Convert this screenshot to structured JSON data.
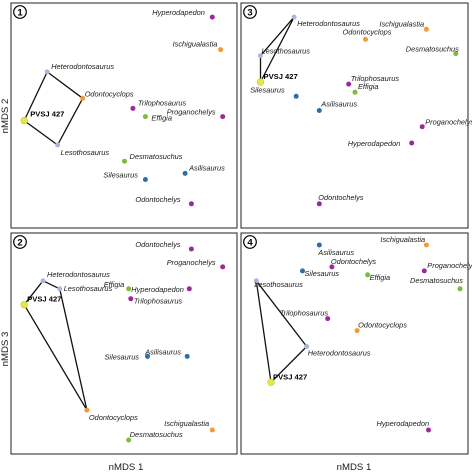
{
  "colors": {
    "Heterodontosaurus": "#a9b8d8",
    "Lesothosaurus": "#a9b8d8",
    "PVSJ 427": "#e3e84a",
    "Odontocyclops": "#f39a32",
    "Ischigualastia": "#f39a32",
    "Silesaurus": "#2e6ea8",
    "Asilisaurus": "#2e6ea8",
    "Trilophosaurus": "#9a2a9a",
    "Proganochelys": "#9a2a9a",
    "Hyperodapedon": "#9a2a9a",
    "Odontochelys": "#9a2a9a",
    "Effigia": "#7dba3e",
    "Desmatosuchus": "#7dba3e",
    "hull": "#111111",
    "frame": "#222222"
  },
  "chart_data": [
    {
      "type": "scatter",
      "panel": "1",
      "hull": [
        "Heterodontosaurus",
        "Odontocyclops",
        "Lesothosaurus",
        "PVSJ 427"
      ],
      "points": [
        {
          "name": "Hyperodapedon",
          "x": 0.92,
          "y": 0.97
        },
        {
          "name": "Ischigualastia",
          "x": 0.96,
          "y": 0.81
        },
        {
          "name": "Heterodontosaurus",
          "x": 0.13,
          "y": 0.7
        },
        {
          "name": "Odontocyclops",
          "x": 0.3,
          "y": 0.57
        },
        {
          "name": "Trilophosaurus",
          "x": 0.54,
          "y": 0.52
        },
        {
          "name": "Effigia",
          "x": 0.6,
          "y": 0.48
        },
        {
          "name": "Proganochelys",
          "x": 0.97,
          "y": 0.48
        },
        {
          "name": "PVSJ 427",
          "x": 0.02,
          "y": 0.46
        },
        {
          "name": "Lesothosaurus",
          "x": 0.18,
          "y": 0.34
        },
        {
          "name": "Desmatosuchus",
          "x": 0.5,
          "y": 0.26
        },
        {
          "name": "Silesaurus",
          "x": 0.6,
          "y": 0.17
        },
        {
          "name": "Asilisaurus",
          "x": 0.79,
          "y": 0.2
        },
        {
          "name": "Odontochelys",
          "x": 0.82,
          "y": 0.05
        }
      ]
    },
    {
      "type": "scatter",
      "panel": "2",
      "hull": [
        "Heterodontosaurus",
        "Lesothosaurus",
        "Odontocyclops",
        "PVSJ 427"
      ],
      "points": [
        {
          "name": "Odontochelys",
          "x": 0.82,
          "y": 0.96
        },
        {
          "name": "Proganochelys",
          "x": 0.97,
          "y": 0.87
        },
        {
          "name": "Heterodontosaurus",
          "x": 0.11,
          "y": 0.8
        },
        {
          "name": "Lesothosaurus",
          "x": 0.19,
          "y": 0.76
        },
        {
          "name": "Effigia",
          "x": 0.52,
          "y": 0.76
        },
        {
          "name": "Hyperodapedon",
          "x": 0.81,
          "y": 0.76
        },
        {
          "name": "Trilophosaurus",
          "x": 0.53,
          "y": 0.71
        },
        {
          "name": "PVSJ 427",
          "x": 0.02,
          "y": 0.68
        },
        {
          "name": "Silesaurus",
          "x": 0.61,
          "y": 0.42
        },
        {
          "name": "Asilisaurus",
          "x": 0.8,
          "y": 0.42
        },
        {
          "name": "Odontocyclops",
          "x": 0.32,
          "y": 0.15
        },
        {
          "name": "Ischigualastia",
          "x": 0.92,
          "y": 0.05
        },
        {
          "name": "Desmatosuchus",
          "x": 0.52,
          "y": 0.0
        }
      ]
    },
    {
      "type": "scatter",
      "panel": "3",
      "hull": [
        "Heterodontosaurus",
        "PVSJ 427",
        "Lesothosaurus"
      ],
      "points": [
        {
          "name": "Heterodontosaurus",
          "x": 0.21,
          "y": 0.97
        },
        {
          "name": "Ischigualastia",
          "x": 0.84,
          "y": 0.91
        },
        {
          "name": "Odontocyclops",
          "x": 0.55,
          "y": 0.86
        },
        {
          "name": "Desmatosuchus",
          "x": 0.98,
          "y": 0.79
        },
        {
          "name": "Lesothosaurus",
          "x": 0.05,
          "y": 0.78
        },
        {
          "name": "PVSJ 427",
          "x": 0.05,
          "y": 0.65
        },
        {
          "name": "Trilophosaurus",
          "x": 0.47,
          "y": 0.64
        },
        {
          "name": "Effigia",
          "x": 0.5,
          "y": 0.6
        },
        {
          "name": "Silesaurus",
          "x": 0.22,
          "y": 0.58
        },
        {
          "name": "Asilisaurus",
          "x": 0.33,
          "y": 0.51
        },
        {
          "name": "Proganochelys",
          "x": 0.82,
          "y": 0.43
        },
        {
          "name": "Hyperodapedon",
          "x": 0.77,
          "y": 0.35
        },
        {
          "name": "Odontochelys",
          "x": 0.33,
          "y": 0.05
        }
      ]
    },
    {
      "type": "scatter",
      "panel": "4",
      "hull": [
        "Lesothosaurus",
        "Heterodontosaurus",
        "PVSJ 427"
      ],
      "points": [
        {
          "name": "Asilisaurus",
          "x": 0.33,
          "y": 0.98
        },
        {
          "name": "Ischigualastia",
          "x": 0.84,
          "y": 0.98
        },
        {
          "name": "Odontochelys",
          "x": 0.39,
          "y": 0.87
        },
        {
          "name": "Silesaurus",
          "x": 0.25,
          "y": 0.85
        },
        {
          "name": "Effigia",
          "x": 0.56,
          "y": 0.83
        },
        {
          "name": "Proganochelys",
          "x": 0.83,
          "y": 0.85
        },
        {
          "name": "Desmatosuchus",
          "x": 1.0,
          "y": 0.76
        },
        {
          "name": "Lesothosaurus",
          "x": 0.03,
          "y": 0.8
        },
        {
          "name": "Trilophosaurus",
          "x": 0.37,
          "y": 0.61
        },
        {
          "name": "Odontocyclops",
          "x": 0.51,
          "y": 0.55
        },
        {
          "name": "Heterodontosaurus",
          "x": 0.27,
          "y": 0.47
        },
        {
          "name": "PVSJ 427",
          "x": 0.1,
          "y": 0.29
        },
        {
          "name": "Hyperodapedon",
          "x": 0.85,
          "y": 0.05
        }
      ]
    }
  ],
  "axes": {
    "y_top": "nMDS 2",
    "y_bottom": "nMDS 3",
    "x_left": "nMDS 1",
    "x_right": "nMDS 1"
  }
}
